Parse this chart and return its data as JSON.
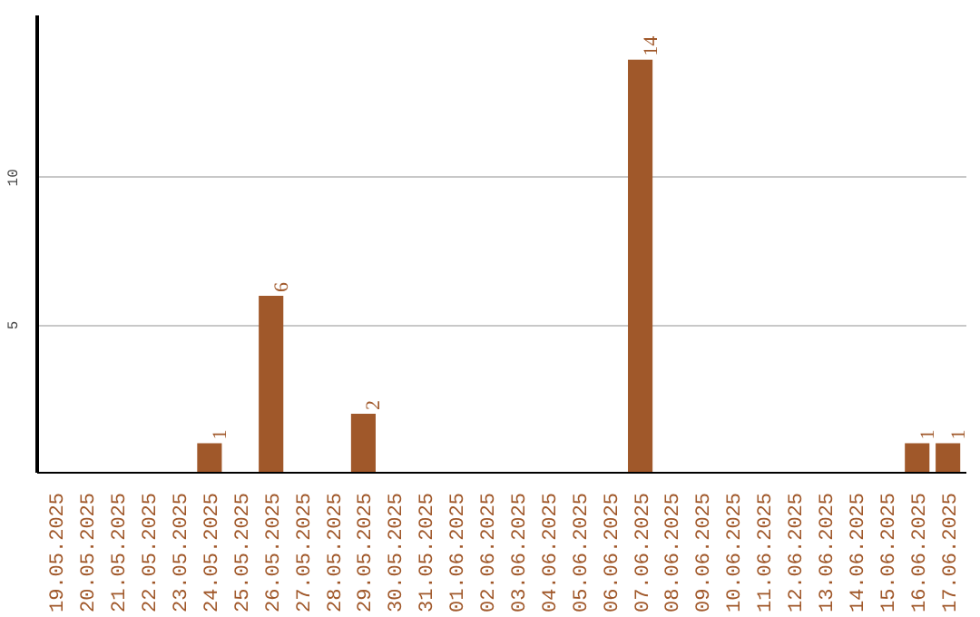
{
  "chart_data": {
    "type": "bar",
    "categories": [
      "19.05.2025",
      "20.05.2025",
      "21.05.2025",
      "22.05.2025",
      "23.05.2025",
      "24.05.2025",
      "25.05.2025",
      "26.05.2025",
      "27.05.2025",
      "28.05.2025",
      "29.05.2025",
      "30.05.2025",
      "31.05.2025",
      "01.06.2025",
      "02.06.2025",
      "03.06.2025",
      "04.06.2025",
      "05.06.2025",
      "06.06.2025",
      "07.06.2025",
      "08.06.2025",
      "09.06.2025",
      "10.06.2025",
      "11.06.2025",
      "12.06.2025",
      "13.06.2025",
      "14.06.2025",
      "15.06.2025",
      "16.06.2025",
      "17.06.2025"
    ],
    "values": [
      0,
      0,
      0,
      0,
      0,
      1,
      0,
      6,
      0,
      0,
      2,
      0,
      0,
      0,
      0,
      0,
      0,
      0,
      0,
      14,
      0,
      0,
      0,
      0,
      0,
      0,
      0,
      0,
      1,
      1
    ],
    "value_labels": [
      null,
      null,
      null,
      null,
      null,
      "1",
      null,
      "6",
      null,
      null,
      "2",
      null,
      null,
      null,
      null,
      null,
      null,
      null,
      null,
      "14",
      null,
      null,
      null,
      null,
      null,
      null,
      null,
      null,
      "1",
      "1"
    ],
    "color": "#a0582a",
    "ylim": [
      0,
      15.5
    ],
    "yticks": [
      5,
      10
    ],
    "grid": "y"
  }
}
